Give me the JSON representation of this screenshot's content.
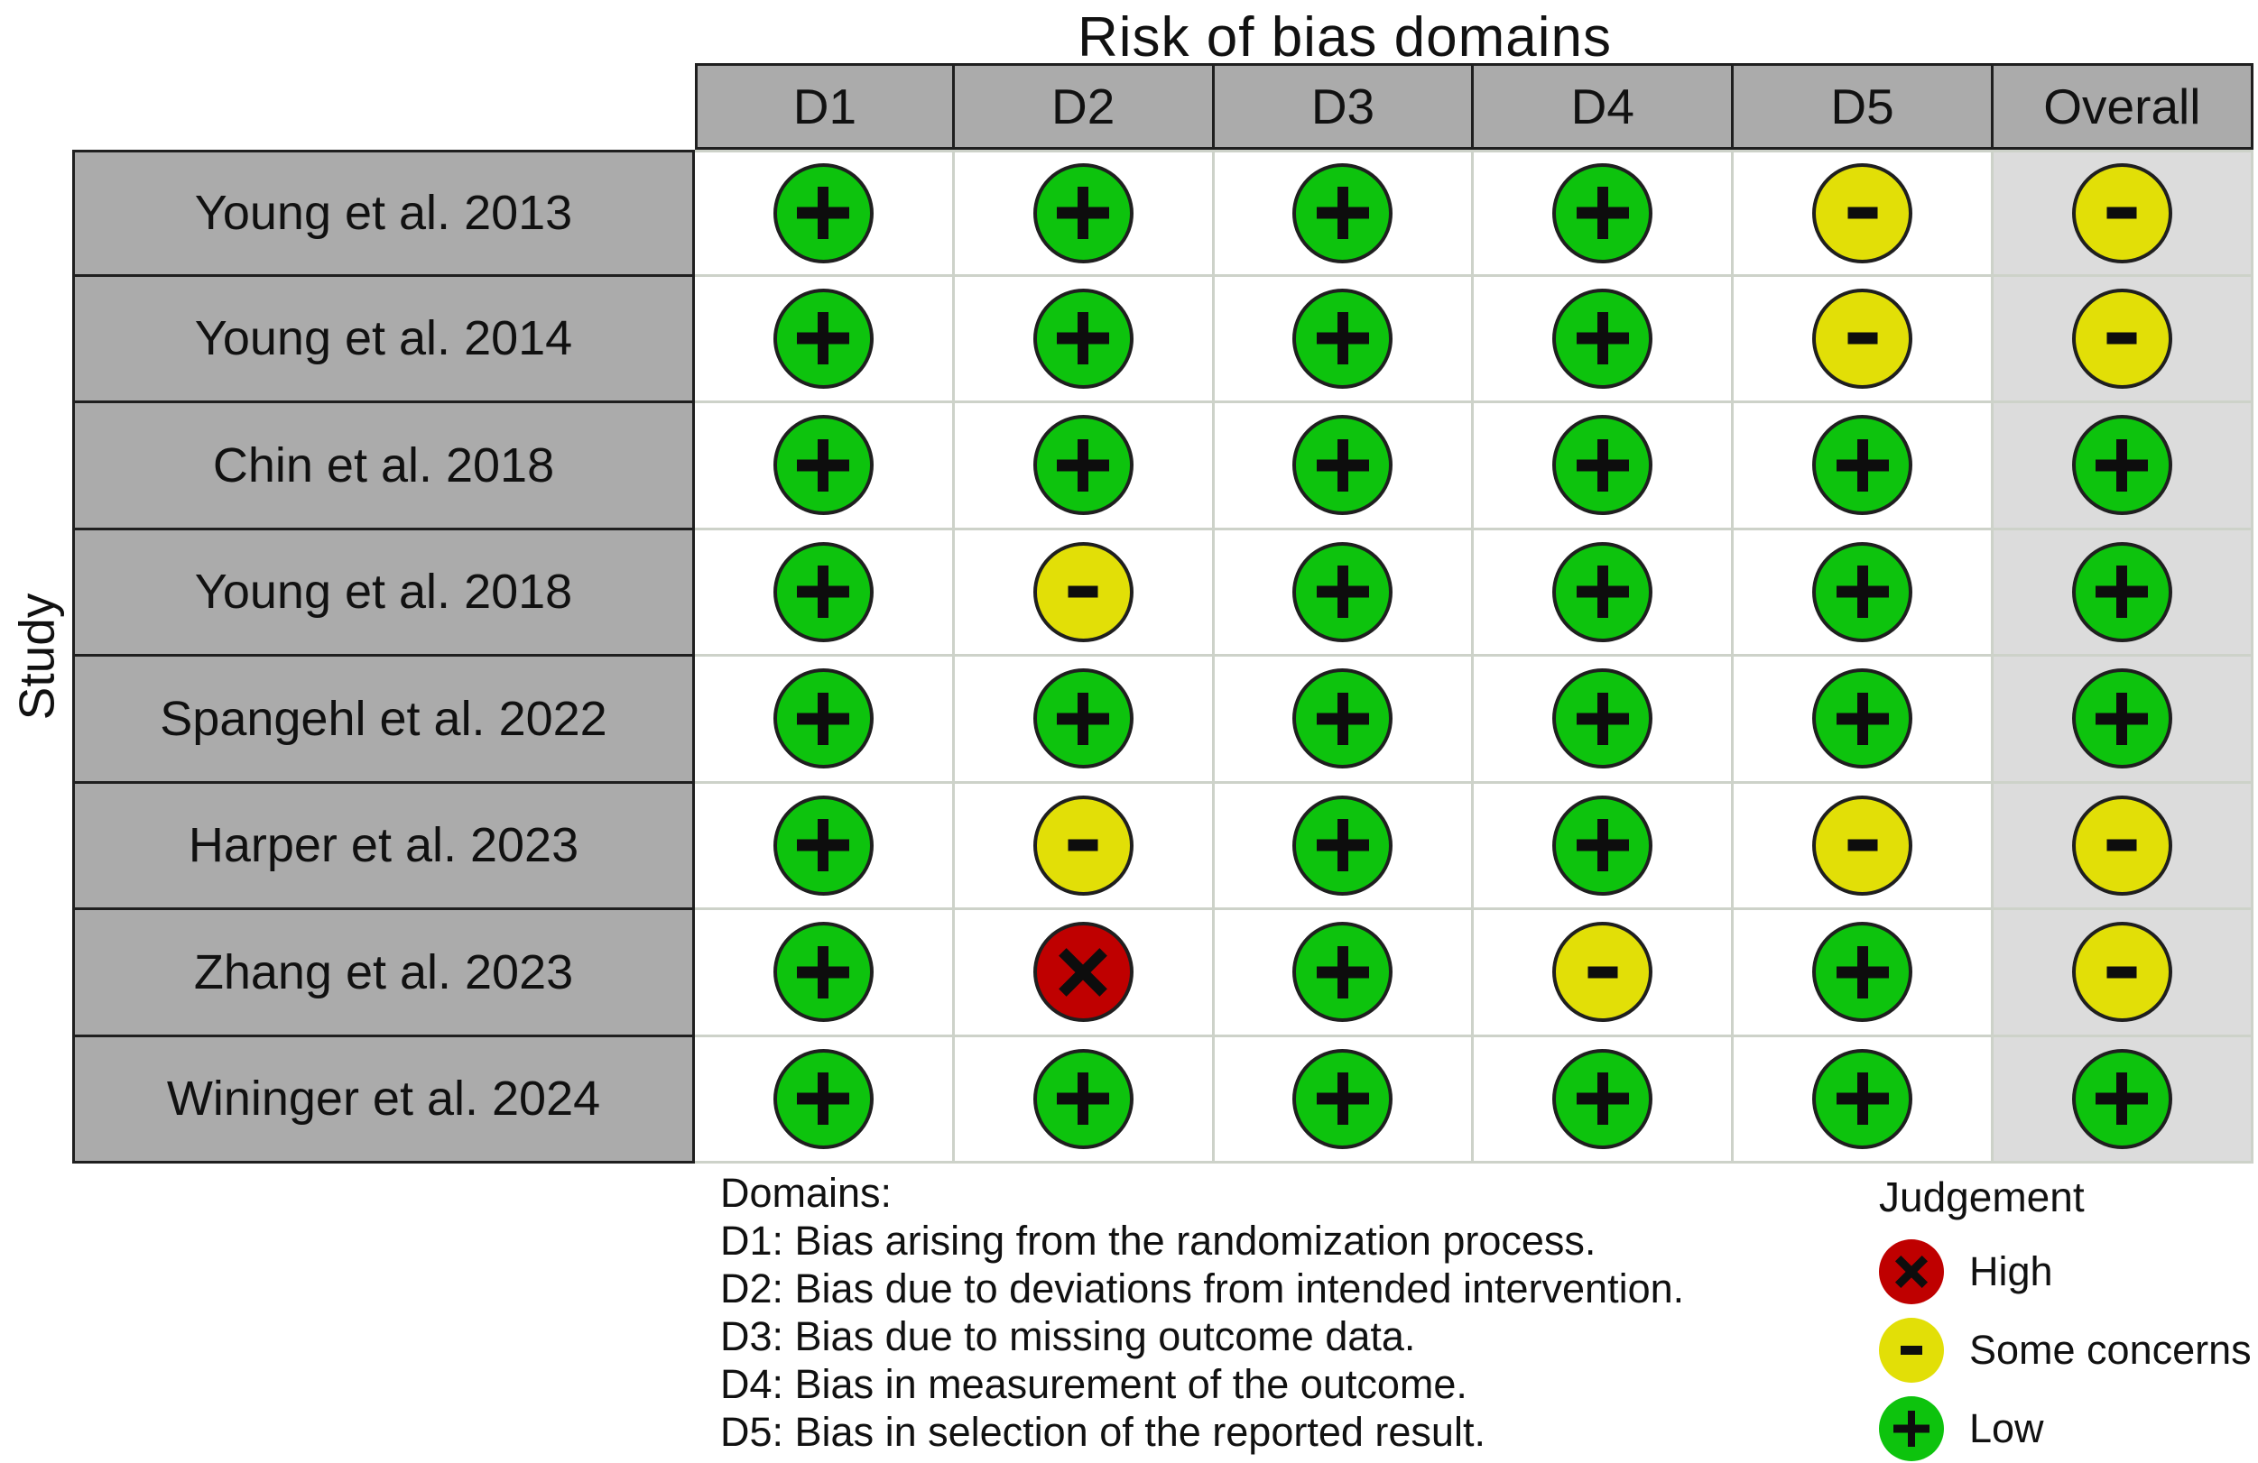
{
  "chart_data": {
    "type": "heatmap",
    "title": "Risk of bias domains",
    "ylabel": "Study",
    "columns": [
      "D1",
      "D2",
      "D3",
      "D4",
      "D5",
      "Overall"
    ],
    "rows": [
      {
        "study": "Young et al. 2013",
        "judgements": [
          "low",
          "low",
          "low",
          "low",
          "some_concerns",
          "some_concerns"
        ]
      },
      {
        "study": "Young et al. 2014",
        "judgements": [
          "low",
          "low",
          "low",
          "low",
          "some_concerns",
          "some_concerns"
        ]
      },
      {
        "study": "Chin et al. 2018",
        "judgements": [
          "low",
          "low",
          "low",
          "low",
          "low",
          "low"
        ]
      },
      {
        "study": "Young et al. 2018",
        "judgements": [
          "low",
          "some_concerns",
          "low",
          "low",
          "low",
          "low"
        ]
      },
      {
        "study": "Spangehl et al. 2022",
        "judgements": [
          "low",
          "low",
          "low",
          "low",
          "low",
          "low"
        ]
      },
      {
        "study": "Harper et al. 2023",
        "judgements": [
          "low",
          "some_concerns",
          "low",
          "low",
          "some_concerns",
          "some_concerns"
        ]
      },
      {
        "study": "Zhang et al. 2023",
        "judgements": [
          "low",
          "high",
          "low",
          "some_concerns",
          "low",
          "some_concerns"
        ]
      },
      {
        "study": "Wininger et al. 2024",
        "judgements": [
          "low",
          "low",
          "low",
          "low",
          "low",
          "low"
        ]
      }
    ],
    "judgement_styles": {
      "high": {
        "symbol": "X",
        "color": "#BF0000",
        "label": "High"
      },
      "some_concerns": {
        "symbol": "-",
        "color": "#E2DF07",
        "label": "Some concerns"
      },
      "low": {
        "symbol": "+",
        "color": "#0DC30D",
        "label": "Low"
      }
    },
    "legend": {
      "title": "Judgement",
      "items": [
        {
          "level": "high",
          "label": "High"
        },
        {
          "level": "some_concerns",
          "label": "Some concerns"
        },
        {
          "level": "low",
          "label": "Low"
        }
      ]
    },
    "notes": {
      "heading": "Domains:",
      "lines": [
        "D1: Bias arising from the randomization process.",
        "D2: Bias due to deviations from intended intervention.",
        "D3: Bias due to missing outcome data.",
        "D4: Bias in measurement of the outcome.",
        "D5: Bias in selection of the reported result."
      ]
    },
    "layout": {
      "legend_position": "bottom-right",
      "grid": "on",
      "colors": {
        "header_fill": "#ABABAB",
        "overall_column_fill": "#DCDCDC",
        "cell_fill": "#FFFFFF",
        "grid_line": "#CDD2C9",
        "table_border": "#1F1F1F"
      }
    }
  }
}
